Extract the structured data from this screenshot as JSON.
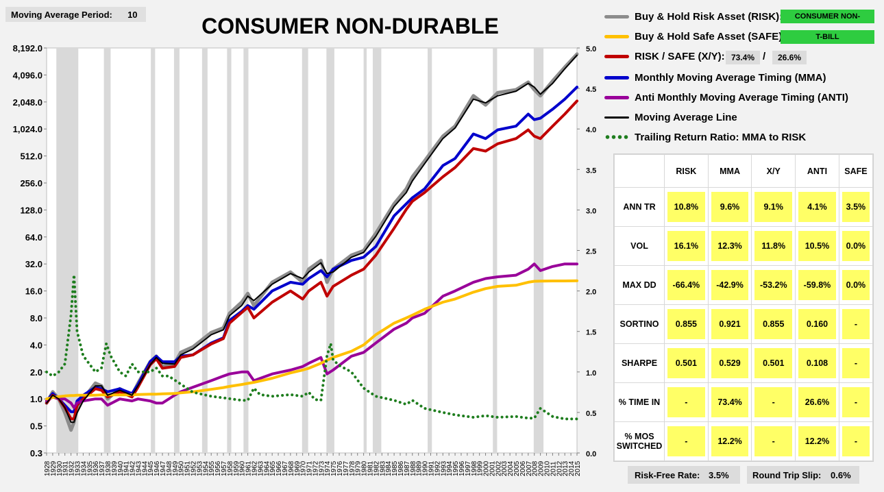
{
  "settings": {
    "ma_label": "Moving Average Period:",
    "ma_value": "10"
  },
  "title": "CONSUMER NON-DURABLE",
  "legend": {
    "risk_label": "Buy & Hold Risk Asset (RISK):",
    "risk_value": "CONSUMER NON-",
    "safe_label": "Buy & Hold Safe Asset (SAFE):",
    "safe_value": "T-BILL",
    "xy_label": "RISK / SAFE (X/Y):",
    "xy_risk": "73.4%",
    "xy_sep": "/",
    "xy_safe": "26.6%",
    "mma_label": "Monthly Moving Average Timing (MMA)",
    "anti_label": "Anti Monthly Moving Average Timing (ANTI)",
    "maline_label": "Moving Average Line",
    "ratio_label": "Trailing Return Ratio: MMA to RISK"
  },
  "colors": {
    "risk": "#8c8c8c",
    "safe": "#ffc000",
    "xy": "#c00000",
    "mma": "#0000cc",
    "anti": "#990099",
    "maline": "#000000",
    "ratio": "#1e7d1e",
    "recession": "#d9d9d9",
    "green": "#2ecc40",
    "yellow": "#ffff66"
  },
  "stats": {
    "headers": [
      "RISK",
      "MMA",
      "X/Y",
      "ANTI",
      "SAFE"
    ],
    "rows": [
      {
        "label": "ANN TR",
        "values": [
          "10.8%",
          "9.6%",
          "9.1%",
          "4.1%",
          "3.5%"
        ]
      },
      {
        "label": "VOL",
        "values": [
          "16.1%",
          "12.3%",
          "11.8%",
          "10.5%",
          "0.0%"
        ]
      },
      {
        "label": "MAX DD",
        "values": [
          "-66.4%",
          "-42.9%",
          "-53.2%",
          "-59.8%",
          "0.0%"
        ]
      },
      {
        "label": "SORTINO",
        "values": [
          "0.855",
          "0.921",
          "0.855",
          "0.160",
          "-"
        ]
      },
      {
        "label": "SHARPE",
        "values": [
          "0.501",
          "0.529",
          "0.501",
          "0.108",
          "-"
        ]
      },
      {
        "label": "% TIME IN",
        "values": [
          "-",
          "73.4%",
          "-",
          "26.6%",
          "-"
        ]
      },
      {
        "label": "% MOS SWITCHED",
        "values": [
          "-",
          "12.2%",
          "-",
          "12.2%",
          "-"
        ]
      }
    ]
  },
  "footer": {
    "rf_label": "Risk-Free Rate:",
    "rf_value": "3.5%",
    "slip_label": "Round Trip Slip:",
    "slip_value": "0.6%"
  },
  "chart_data": {
    "type": "line",
    "title": "CONSUMER NON-DURABLE",
    "y_scale": "log2",
    "y_ticks": [
      "0.3",
      "0.5",
      "1.0",
      "2.0",
      "4.0",
      "8.0",
      "16.0",
      "32.0",
      "64.0",
      "128.0",
      "256.0",
      "512.0",
      "1,024.0",
      "2,048.0",
      "4,096.0",
      "8,192.0"
    ],
    "y_tick_values": [
      0.25,
      0.5,
      1,
      2,
      4,
      8,
      16,
      32,
      64,
      128,
      256,
      512,
      1024,
      2048,
      4096,
      8192
    ],
    "y2_ticks": [
      "0.0",
      "0.5",
      "1.0",
      "1.5",
      "2.0",
      "2.5",
      "3.0",
      "3.5",
      "4.0",
      "4.5",
      "5.0"
    ],
    "y2lim": [
      0,
      5
    ],
    "xlim": [
      1928,
      2015
    ],
    "x_ticks": [
      "1928",
      "1929",
      "1930",
      "1931",
      "1932",
      "1933",
      "1934",
      "1935",
      "1936",
      "1937",
      "1938",
      "1939",
      "1940",
      "1941",
      "1942",
      "1943",
      "1944",
      "1945",
      "1946",
      "1947",
      "1948",
      "1949",
      "1950",
      "1951",
      "1952",
      "1953",
      "1954",
      "1955",
      "1956",
      "1957",
      "1958",
      "1959",
      "1960",
      "1961",
      "1962",
      "1963",
      "1964",
      "1965",
      "1966",
      "1967",
      "1968",
      "1969",
      "1970",
      "1971",
      "1972",
      "1973",
      "1974",
      "1975",
      "1976",
      "1977",
      "1978",
      "1979",
      "1980",
      "1981",
      "1982",
      "1983",
      "1984",
      "1985",
      "1986",
      "1987",
      "1988",
      "1989",
      "1990",
      "1991",
      "1992",
      "1993",
      "1994",
      "1995",
      "1996",
      "1997",
      "1998",
      "1999",
      "2000",
      "2001",
      "2002",
      "2003",
      "2004",
      "2005",
      "2006",
      "2007",
      "2008",
      "2009",
      "2010",
      "2011",
      "2012",
      "2013",
      "2014",
      "2015"
    ],
    "recessions": [
      [
        1929.6,
        1933.2
      ],
      [
        1937.4,
        1938.5
      ],
      [
        1945.1,
        1945.8
      ],
      [
        1948.9,
        1949.8
      ],
      [
        1953.5,
        1954.4
      ],
      [
        1957.6,
        1958.3
      ],
      [
        1960.3,
        1961.1
      ],
      [
        1969.9,
        1970.9
      ],
      [
        1973.9,
        1975.2
      ],
      [
        1980.0,
        1980.5
      ],
      [
        1981.5,
        1982.9
      ],
      [
        1990.5,
        1991.2
      ],
      [
        2001.2,
        2001.9
      ],
      [
        2007.9,
        2009.5
      ]
    ],
    "x": [
      1928,
      1929,
      1930,
      1931,
      1932,
      1932.5,
      1933,
      1934,
      1936,
      1937,
      1938,
      1940,
      1942,
      1943,
      1945,
      1946,
      1947,
      1949,
      1950,
      1952,
      1955,
      1957,
      1958,
      1960,
      1961,
      1962,
      1965,
      1968,
      1970,
      1971,
      1973,
      1974,
      1975,
      1978,
      1980,
      1982,
      1985,
      1987,
      1988,
      1990,
      1993,
      1995,
      1998,
      2000,
      2002,
      2005,
      2007,
      2008,
      2009,
      2011,
      2013,
      2015
    ],
    "series": [
      {
        "name": "Buy & Hold Risk Asset (RISK)",
        "values": [
          0.9,
          1.2,
          1.0,
          0.7,
          0.45,
          0.55,
          0.8,
          1.0,
          1.5,
          1.4,
          1.0,
          1.3,
          1.1,
          1.5,
          2.6,
          3.0,
          2.3,
          2.5,
          3.3,
          3.8,
          5.5,
          6.2,
          9.0,
          12,
          15,
          11,
          20,
          26,
          20,
          28,
          35,
          20,
          28,
          40,
          45,
          70,
          150,
          220,
          300,
          450,
          850,
          1100,
          2400,
          1900,
          2600,
          2800,
          3400,
          2800,
          2400,
          3500,
          5000,
          7000
        ]
      },
      {
        "name": "Monthly Moving Average Timing (MMA)",
        "values": [
          0.95,
          1.15,
          1.0,
          0.85,
          0.72,
          0.72,
          0.95,
          1.1,
          1.35,
          1.3,
          1.2,
          1.3,
          1.15,
          1.45,
          2.6,
          3.0,
          2.6,
          2.6,
          3.0,
          3.1,
          4.2,
          4.8,
          7.5,
          9.5,
          11,
          10,
          16,
          20,
          19,
          22,
          27,
          23,
          28,
          35,
          38,
          50,
          110,
          150,
          175,
          220,
          400,
          480,
          900,
          800,
          1000,
          1100,
          1500,
          1300,
          1350,
          1700,
          2200,
          3000
        ]
      },
      {
        "name": "RISK / SAFE (X/Y)",
        "values": [
          0.9,
          1.1,
          1.0,
          0.8,
          0.6,
          0.6,
          0.85,
          1.0,
          1.3,
          1.25,
          1.05,
          1.2,
          1.05,
          1.35,
          2.4,
          2.8,
          2.2,
          2.3,
          2.9,
          3.1,
          4.1,
          4.7,
          7.0,
          9.2,
          10.5,
          8.0,
          12,
          16,
          13,
          16,
          20,
          14,
          18,
          24,
          28,
          40,
          80,
          130,
          160,
          200,
          300,
          380,
          620,
          580,
          700,
          800,
          1000,
          850,
          800,
          1100,
          1500,
          2100
        ]
      },
      {
        "name": "Anti Monthly Moving Average Timing (ANTI)",
        "values": [
          0.95,
          1.05,
          1.0,
          1.0,
          0.9,
          0.8,
          0.9,
          0.95,
          1.0,
          1.0,
          0.85,
          1.0,
          0.95,
          1.0,
          0.95,
          0.9,
          0.9,
          1.1,
          1.2,
          1.35,
          1.6,
          1.8,
          1.9,
          2.0,
          2.0,
          1.6,
          1.9,
          2.1,
          2.3,
          2.5,
          2.9,
          1.9,
          2.1,
          3.0,
          3.3,
          4.2,
          6.0,
          7.0,
          8.0,
          9.0,
          14,
          16,
          20,
          22,
          23,
          24,
          28,
          32,
          27,
          30,
          32,
          32
        ]
      },
      {
        "name": "Buy & Hold Safe Asset (SAFE)",
        "values": [
          1.0,
          1.04,
          1.06,
          1.08,
          1.09,
          1.09,
          1.1,
          1.1,
          1.1,
          1.11,
          1.11,
          1.11,
          1.11,
          1.12,
          1.13,
          1.13,
          1.14,
          1.15,
          1.17,
          1.2,
          1.28,
          1.34,
          1.38,
          1.45,
          1.49,
          1.53,
          1.7,
          1.95,
          2.1,
          2.2,
          2.5,
          2.7,
          2.9,
          3.4,
          4.0,
          5.2,
          7.0,
          8.0,
          8.6,
          10.0,
          12.0,
          13.0,
          15.5,
          17.0,
          18.0,
          18.5,
          20.0,
          20.5,
          20.6,
          20.7,
          20.7,
          20.8
        ]
      },
      {
        "name": "Moving Average Line",
        "values": [
          0.9,
          1.1,
          1.0,
          0.8,
          0.55,
          0.55,
          0.7,
          0.95,
          1.4,
          1.4,
          1.1,
          1.25,
          1.1,
          1.4,
          2.4,
          2.9,
          2.5,
          2.45,
          3.1,
          3.6,
          5.2,
          5.9,
          8.5,
          11,
          14,
          12.5,
          19,
          25,
          22,
          26,
          33,
          25,
          26,
          38,
          43,
          65,
          140,
          200,
          270,
          420,
          800,
          1050,
          2200,
          2000,
          2400,
          2700,
          3300,
          3000,
          2500,
          3300,
          4800,
          6800
        ]
      }
    ],
    "ratio_series": {
      "name": "Trailing Return Ratio: MMA to RISK",
      "x": [
        1928,
        1929,
        1930,
        1931,
        1932,
        1932.5,
        1933,
        1934,
        1936,
        1937,
        1937.8,
        1938.5,
        1940,
        1941,
        1942,
        1943,
        1945,
        1946,
        1947,
        1948,
        1949,
        1950,
        1952,
        1955,
        1957,
        1960,
        1961,
        1962,
        1963,
        1965,
        1968,
        1970,
        1971,
        1972,
        1973,
        1974,
        1974.6,
        1975,
        1976,
        1978,
        1980,
        1982,
        1985,
        1987,
        1988,
        1990,
        1993,
        1995,
        1998,
        2000,
        2002,
        2005,
        2007,
        2008,
        2009,
        2011,
        2013,
        2015
      ],
      "values": [
        1.0,
        0.95,
        1.0,
        1.1,
        1.7,
        2.2,
        1.5,
        1.2,
        1.0,
        1.05,
        1.35,
        1.2,
        1.0,
        0.95,
        1.1,
        1.0,
        1.0,
        1.05,
        0.95,
        0.95,
        0.9,
        0.85,
        0.75,
        0.7,
        0.68,
        0.65,
        0.65,
        0.8,
        0.72,
        0.7,
        0.72,
        0.7,
        0.75,
        0.66,
        0.65,
        1.2,
        1.35,
        1.15,
        1.08,
        1.0,
        0.8,
        0.7,
        0.65,
        0.6,
        0.65,
        0.55,
        0.5,
        0.47,
        0.44,
        0.46,
        0.44,
        0.45,
        0.43,
        0.43,
        0.55,
        0.45,
        0.42,
        0.42
      ]
    }
  }
}
